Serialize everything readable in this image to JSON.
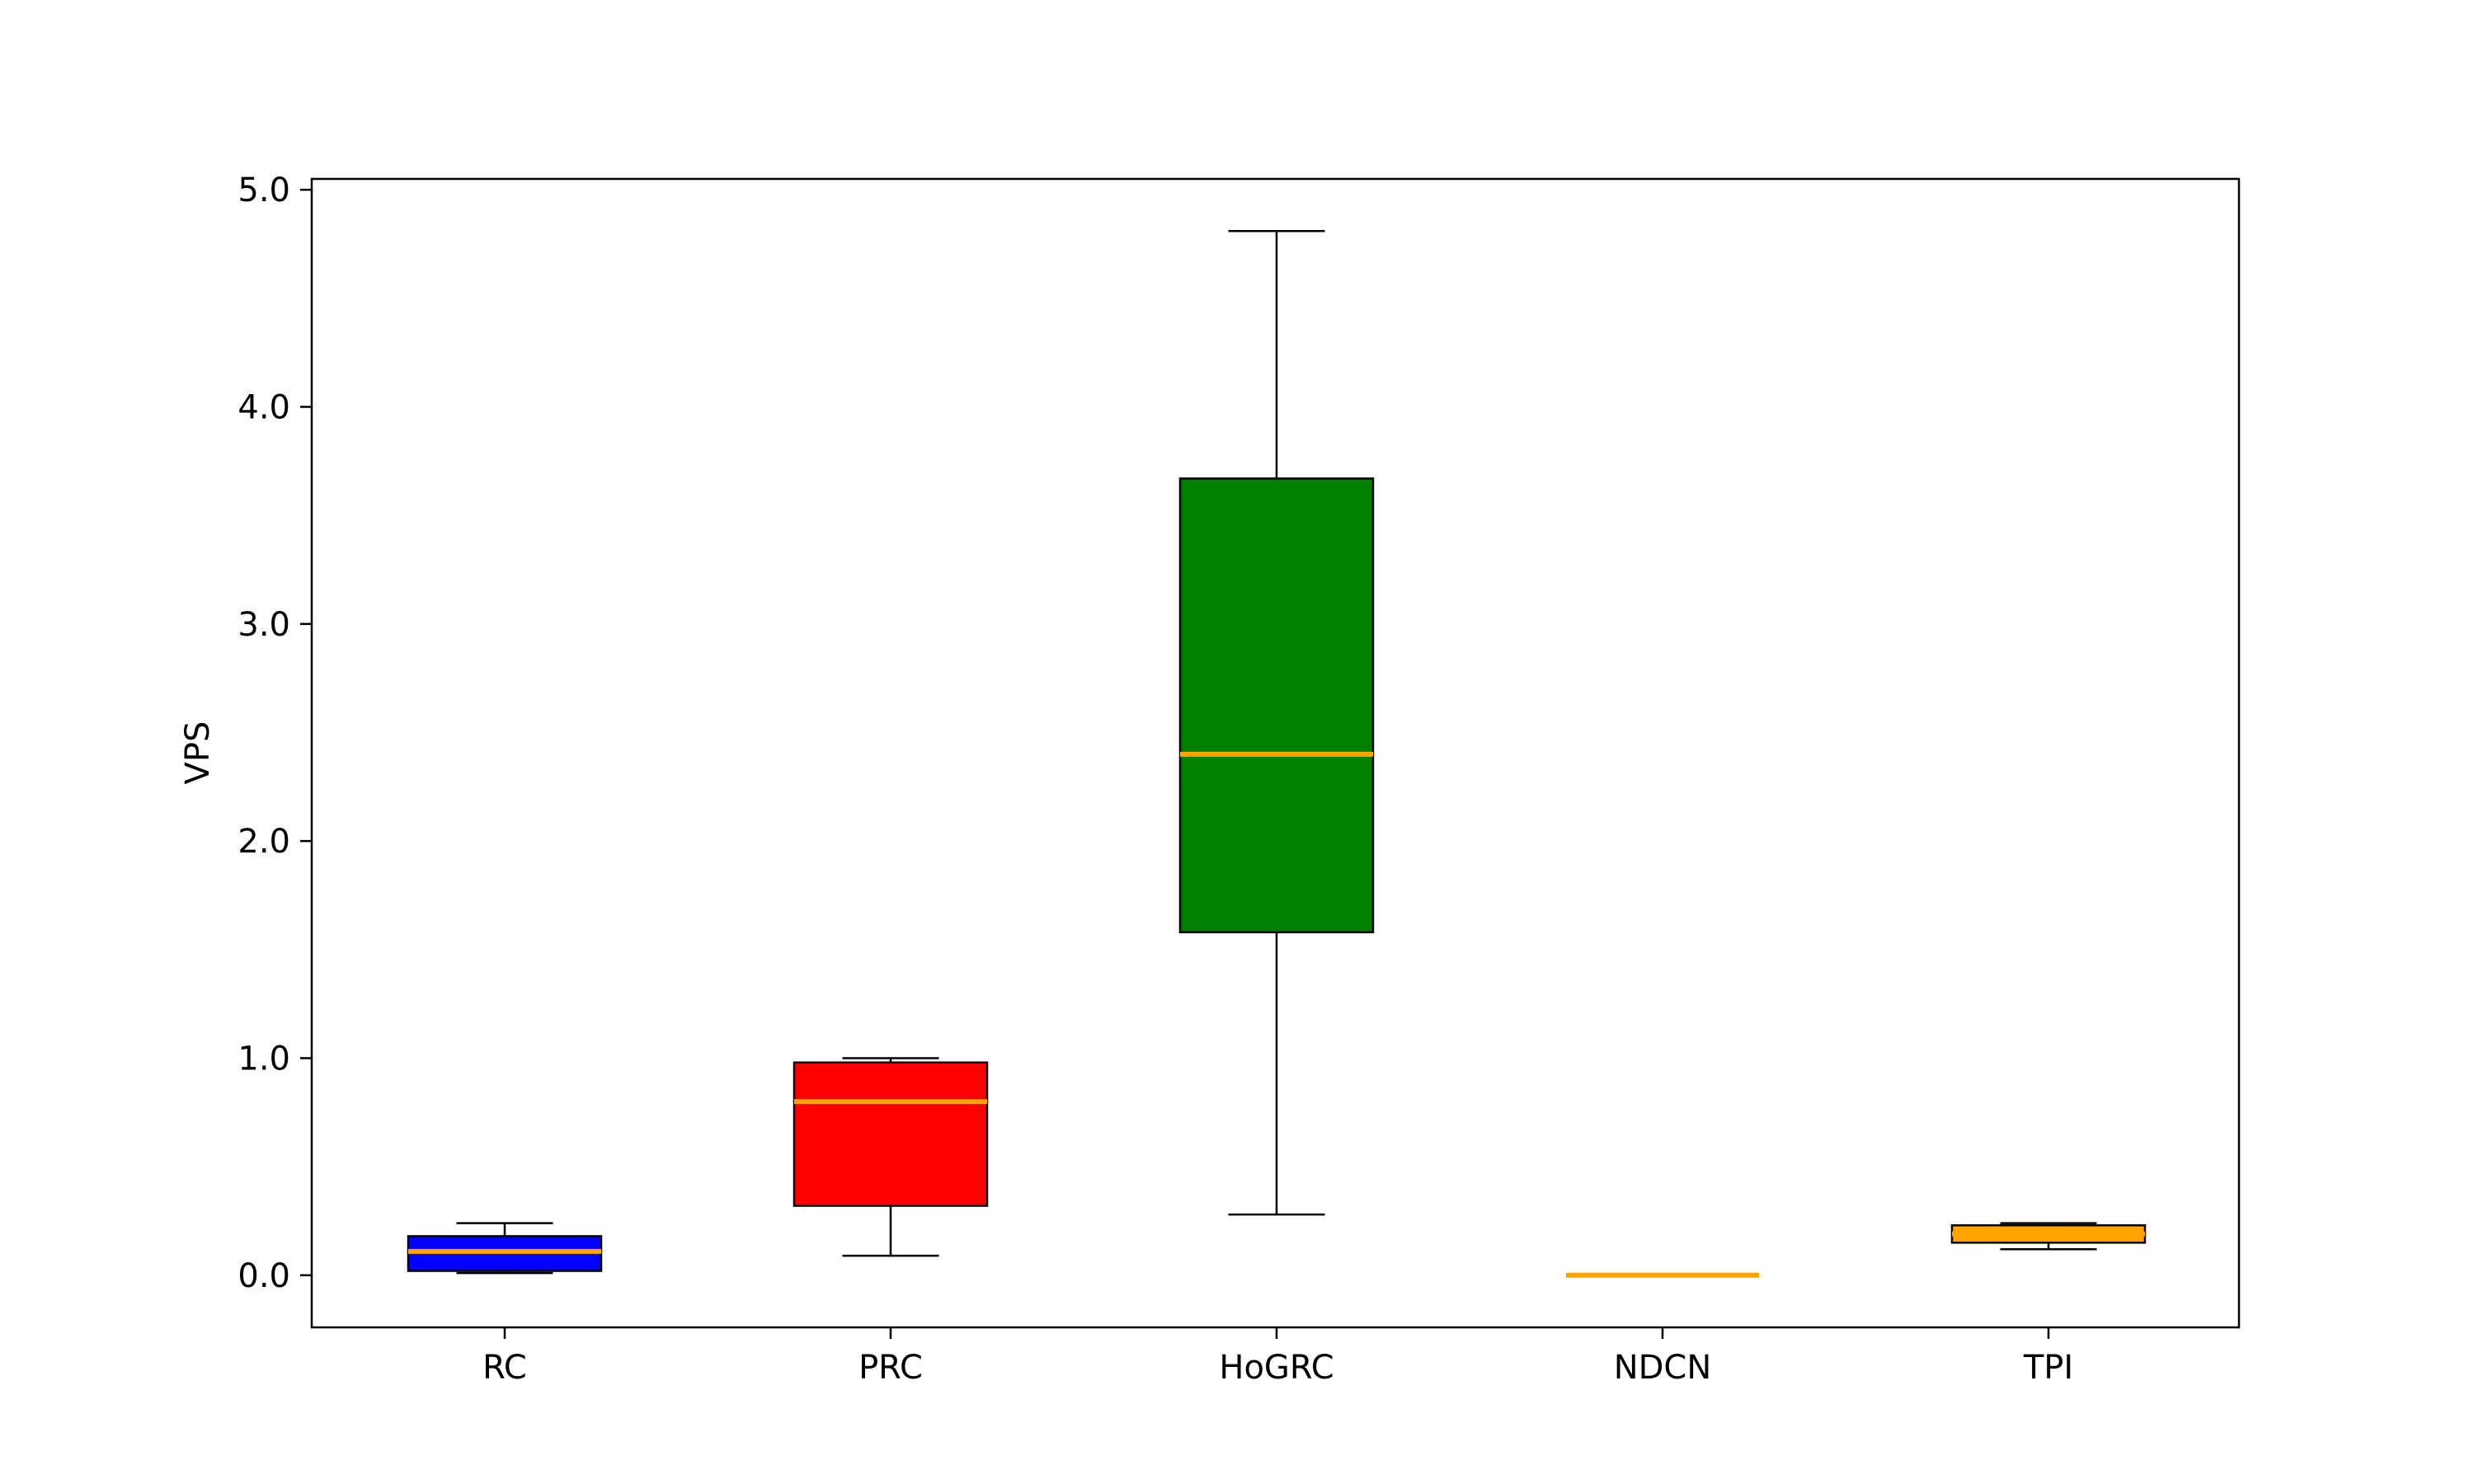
{
  "chart_data": {
    "type": "box",
    "title": "",
    "xlabel": "",
    "ylabel": "VPS",
    "ylim": [
      -0.24,
      5.05
    ],
    "yticks": [
      0.0,
      1.0,
      2.0,
      3.0,
      4.0,
      5.0
    ],
    "ytick_labels": [
      "0.0",
      "1.0",
      "2.0",
      "3.0",
      "4.0",
      "5.0"
    ],
    "grid": false,
    "median_color": "#ffa500",
    "series": [
      {
        "category": "RC",
        "whisker_low": 0.01,
        "q1": 0.02,
        "median": 0.11,
        "q3": 0.18,
        "whisker_high": 0.24,
        "color": "#0000ff"
      },
      {
        "category": "PRC",
        "whisker_low": 0.09,
        "q1": 0.32,
        "median": 0.8,
        "q3": 0.98,
        "whisker_high": 1.0,
        "color": "#ff0000"
      },
      {
        "category": "HoGRC",
        "whisker_low": 0.28,
        "q1": 1.58,
        "median": 2.4,
        "q3": 3.67,
        "whisker_high": 4.81,
        "color": "#008000"
      },
      {
        "category": "NDCN",
        "whisker_low": 0.0,
        "q1": 0.0,
        "median": 0.0,
        "q3": 0.0,
        "whisker_high": 0.0,
        "color": "#ffa500"
      },
      {
        "category": "TPI",
        "whisker_low": 0.12,
        "q1": 0.15,
        "median": 0.19,
        "q3": 0.23,
        "whisker_high": 0.24,
        "color": "#ffa500"
      }
    ]
  }
}
